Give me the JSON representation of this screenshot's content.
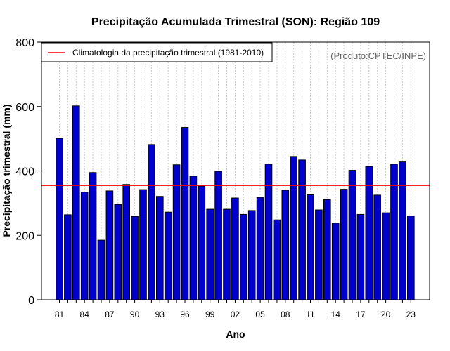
{
  "chart_data": {
    "type": "bar",
    "title": "Precipitação Acumulada Trimestral (SON): Região 109",
    "xlabel": "Ano",
    "ylabel": "Precipitação trimestral (mm)",
    "ylim": [
      0,
      800
    ],
    "yticks": [
      0,
      200,
      400,
      600,
      800
    ],
    "years": [
      1981,
      1982,
      1983,
      1984,
      1985,
      1986,
      1987,
      1988,
      1989,
      1990,
      1991,
      1992,
      1993,
      1994,
      1995,
      1996,
      1997,
      1998,
      1999,
      2000,
      2001,
      2002,
      2003,
      2004,
      2005,
      2006,
      2007,
      2008,
      2009,
      2010,
      2011,
      2012,
      2013,
      2014,
      2015,
      2016,
      2017,
      2018,
      2019,
      2020,
      2021,
      2022,
      2023
    ],
    "xtick_labels": [
      "81",
      "84",
      "87",
      "90",
      "93",
      "96",
      "99",
      "02",
      "05",
      "08",
      "11",
      "14",
      "17",
      "20",
      "23"
    ],
    "values": [
      501,
      264,
      602,
      334,
      395,
      185,
      338,
      296,
      358,
      259,
      342,
      482,
      321,
      272,
      419,
      535,
      384,
      353,
      281,
      399,
      281,
      316,
      265,
      277,
      318,
      421,
      248,
      340,
      445,
      434,
      326,
      279,
      311,
      238,
      343,
      402,
      265,
      414,
      325,
      270,
      421,
      428,
      260
    ],
    "bar_color": "#0000cc",
    "climatology": {
      "label": "Climatologia da precipitação trimestral (1981-2010)",
      "value": 355,
      "color": "#ff0000"
    },
    "credit": "(Produto:CPTEC/INPE)",
    "legend_position": "top-left",
    "grid": "vertical-dotted"
  }
}
